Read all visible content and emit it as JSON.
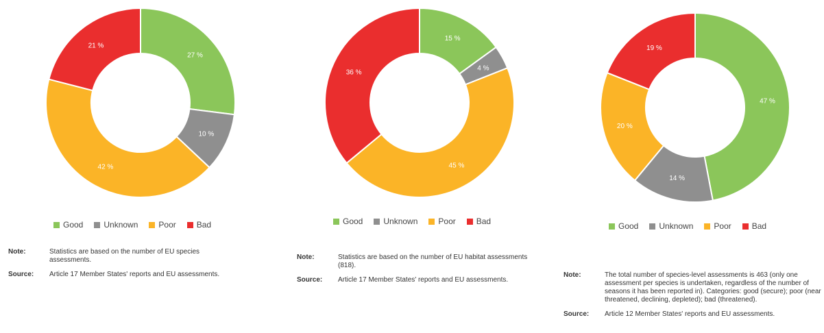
{
  "colors": {
    "good": "#8bc65a",
    "unknown": "#8f8f8f",
    "poor": "#fbb427",
    "bad": "#ea2e2e"
  },
  "chart_data": [
    {
      "type": "pie",
      "donut": true,
      "categories": [
        "Good",
        "Unknown",
        "Poor",
        "Bad"
      ],
      "values": [
        27,
        10,
        42,
        21
      ],
      "value_labels": [
        "27 %",
        "10 %",
        "42 %",
        "21 %"
      ],
      "legend": [
        "Good",
        "Unknown",
        "Poor",
        "Bad"
      ],
      "legend_position": "bottom",
      "note_label": "Note:",
      "note": "Statistics are based on the number of EU species assessments.",
      "source_label": "Source:",
      "source": "Article 17 Member States' reports and EU assessments."
    },
    {
      "type": "pie",
      "donut": true,
      "categories": [
        "Good",
        "Unknown",
        "Poor",
        "Bad"
      ],
      "values": [
        15,
        4,
        45,
        36
      ],
      "value_labels": [
        "15 %",
        "4 %",
        "45 %",
        "36 %"
      ],
      "legend": [
        "Good",
        "Unknown",
        "Poor",
        "Bad"
      ],
      "legend_position": "bottom",
      "note_label": "Note:",
      "note": "Statistics are based on the number of EU habitat assessments (818).",
      "source_label": "Source:",
      "source": "Article 17 Member States' reports and EU assessments."
    },
    {
      "type": "pie",
      "donut": true,
      "categories": [
        "Good",
        "Unknown",
        "Poor",
        "Bad"
      ],
      "values": [
        47,
        14,
        20,
        19
      ],
      "value_labels": [
        "47 %",
        "14 %",
        "20 %",
        "19 %"
      ],
      "legend": [
        "Good",
        "Unknown",
        "Poor",
        "Bad"
      ],
      "legend_position": "bottom",
      "note_label": "Note:",
      "note": "The total number of species-level assessments is 463 (only one assessment per species is undertaken, regardless of the number of seasons it has been reported in). Categories: good (secure); poor (near threatened, declining, depleted); bad (threatened).",
      "source_label": "Source:",
      "source": "Article 12 Member States' reports and EU assessments."
    }
  ]
}
